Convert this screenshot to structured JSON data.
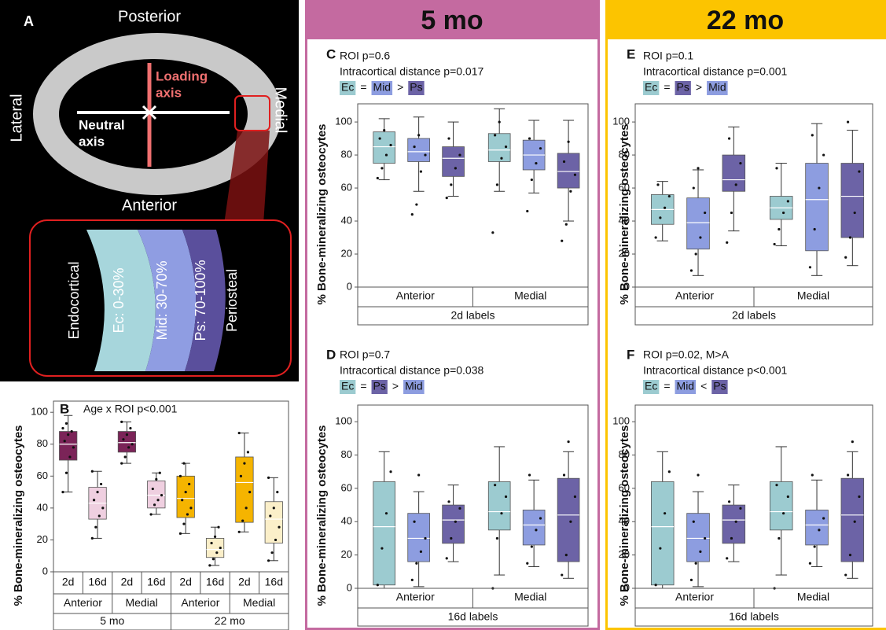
{
  "panel_a": {
    "letter": "A",
    "posterior": "Posterior",
    "anterior": "Anterior",
    "lateral": "Lateral",
    "medial": "Medial",
    "loading_axis": [
      "Loading",
      "axis"
    ],
    "neutral_axis": [
      "Neutral",
      "axis"
    ],
    "inset": {
      "endocortical": "Endocortical",
      "ec": "Ec: 0-30%",
      "mid": "Mid: 30-70%",
      "ps": "Ps: 70-100%",
      "periosteal": "Periosteal"
    }
  },
  "headers": [
    "5 mo",
    "22 mo"
  ],
  "chart_data": [
    {
      "type": "box",
      "panel": "B",
      "annotation": "Age x ROI p<0.001",
      "ylabel": "% Bone-mineralizing osteocytes",
      "ylim": [
        0,
        107
      ],
      "yticks": [
        0,
        20,
        40,
        60,
        80,
        100
      ],
      "categories": [
        "2d",
        "16d",
        "2d",
        "16d",
        "2d",
        "16d",
        "2d",
        "16d"
      ],
      "groups": [
        "Anterior",
        "Medial",
        "Anterior",
        "Medial"
      ],
      "supergroups": [
        "5 mo",
        "22 mo"
      ],
      "colors": [
        "#7b2458",
        "#efcfe0",
        "#7b2458",
        "#efcfe0",
        "#f5b400",
        "#fbefc9",
        "#f5b400",
        "#fbefc9"
      ],
      "values": [
        [
          50,
          70,
          80,
          88,
          98
        ],
        [
          21,
          33,
          43,
          53,
          63
        ],
        [
          68,
          75,
          81,
          88,
          94
        ],
        [
          36,
          40,
          48,
          57,
          62
        ],
        [
          24,
          34,
          46,
          60,
          68
        ],
        [
          4,
          9,
          14,
          21,
          28
        ],
        [
          25,
          31,
          56,
          72,
          87
        ],
        [
          7,
          18,
          33,
          44,
          59
        ]
      ],
      "points": [
        [
          50,
          62,
          72,
          78,
          82,
          86,
          88,
          90,
          93
        ],
        [
          21,
          28,
          35,
          40,
          45,
          50,
          55,
          63
        ],
        [
          68,
          72,
          78,
          80,
          83,
          86,
          90,
          94
        ],
        [
          36,
          42,
          45,
          48,
          52,
          58,
          62
        ],
        [
          24,
          30,
          36,
          40,
          45,
          50,
          55,
          60,
          68
        ],
        [
          4,
          8,
          12,
          15,
          18,
          22,
          28
        ],
        [
          25,
          32,
          40,
          50,
          60,
          68,
          75,
          87
        ],
        [
          7,
          12,
          20,
          28,
          35,
          40,
          50,
          59
        ]
      ]
    },
    {
      "type": "box",
      "panel": "C",
      "annotations": [
        "ROI p=0.6",
        "Intracortical distance p=0.017"
      ],
      "comparison": [
        "Ec",
        "=",
        "Mid",
        ">",
        "Ps"
      ],
      "ylabel": "% Bone-mineralizing osteocytes",
      "xlabel": "2d labels",
      "ylim": [
        0,
        111
      ],
      "yticks": [
        0,
        20,
        40,
        60,
        80,
        100
      ],
      "categories": [
        "Anterior",
        "Medial"
      ],
      "series": [
        {
          "name": "Ec",
          "color": "#9ccbd0",
          "values": [
            [
              65,
              75,
              85,
              94,
              102
            ],
            [
              58,
              76,
              83,
              93,
              108
            ]
          ],
          "points": [
            [
              66,
              72,
              80,
              86,
              90,
              95
            ],
            [
              33,
              62,
              78,
              85,
              92,
              100
            ]
          ]
        },
        {
          "name": "Mid",
          "color": "#8d9de0",
          "values": [
            [
              58,
              76,
              82,
              90,
              103
            ],
            [
              57,
              71,
              80,
              89,
              101
            ]
          ],
          "points": [
            [
              44,
              50,
              70,
              80,
              85,
              92
            ],
            [
              46,
              65,
              75,
              84,
              90
            ]
          ]
        },
        {
          "name": "Ps",
          "color": "#6c63a6",
          "values": [
            [
              55,
              67,
              78,
              85,
              100
            ],
            [
              40,
              60,
              70,
              81,
              101
            ]
          ],
          "points": [
            [
              54,
              62,
              72,
              80,
              90
            ],
            [
              28,
              38,
              58,
              68,
              76,
              88
            ]
          ]
        }
      ]
    },
    {
      "type": "box",
      "panel": "D",
      "annotations": [
        "ROI p=0.7",
        "Intracortical distance p=0.038"
      ],
      "comparison": [
        "Ec",
        "=",
        "Ps",
        ">",
        "Mid"
      ],
      "ylabel": "% Bone-mineralizing osteocytes",
      "xlabel": "16d labels",
      "ylim": [
        0,
        110
      ],
      "yticks": [
        0,
        20,
        40,
        60,
        80,
        100
      ],
      "categories": [
        "Anterior",
        "Medial"
      ],
      "series": [
        {
          "name": "Ec",
          "color": "#9ccbd0",
          "values": [
            [
              0,
              2,
              37,
              64,
              82
            ],
            [
              8,
              35,
              46,
              64,
              85
            ]
          ],
          "points": [
            [
              2,
              24,
              45,
              70
            ],
            [
              0,
              30,
              45,
              55,
              62
            ]
          ]
        },
        {
          "name": "Mid",
          "color": "#8d9de0",
          "values": [
            [
              1,
              16,
              30,
              45,
              58
            ],
            [
              13,
              26,
              38,
              47,
              65
            ]
          ],
          "points": [
            [
              5,
              15,
              22,
              30,
              40,
              68
            ],
            [
              15,
              25,
              35,
              42,
              68
            ]
          ]
        },
        {
          "name": "Ps",
          "color": "#6c63a6",
          "values": [
            [
              16,
              27,
              41,
              50,
              62
            ],
            [
              6,
              16,
              44,
              66,
              82
            ]
          ],
          "points": [
            [
              18,
              30,
              40,
              48,
              52
            ],
            [
              8,
              20,
              40,
              55,
              68,
              88
            ]
          ]
        }
      ]
    },
    {
      "type": "box",
      "panel": "E",
      "annotations": [
        "ROI p=0.1",
        "Intracortical distance p=0.001"
      ],
      "comparison": [
        "Ec",
        "=",
        "Ps",
        ">",
        "Mid"
      ],
      "ylabel": "% Bone-mineralizing osteocytes",
      "xlabel": "2d labels",
      "ylim": [
        0,
        111
      ],
      "yticks": [
        0,
        20,
        40,
        60,
        80,
        100
      ],
      "categories": [
        "Anterior",
        "Medial"
      ],
      "series": [
        {
          "name": "Ec",
          "color": "#9ccbd0",
          "values": [
            [
              28,
              38,
              47,
              56,
              64
            ],
            [
              25,
              41,
              48,
              55,
              75
            ]
          ],
          "points": [
            [
              30,
              42,
              48,
              55,
              62
            ],
            [
              26,
              35,
              45,
              52,
              72
            ]
          ]
        },
        {
          "name": "Mid",
          "color": "#8d9de0",
          "values": [
            [
              7,
              23,
              39,
              54,
              71
            ],
            [
              7,
              22,
              53,
              75,
              99
            ]
          ],
          "points": [
            [
              10,
              20,
              30,
              45,
              60,
              72
            ],
            [
              12,
              35,
              60,
              80,
              92
            ]
          ]
        },
        {
          "name": "Ps",
          "color": "#6c63a6",
          "values": [
            [
              34,
              58,
              65,
              80,
              97
            ],
            [
              13,
              30,
              55,
              75,
              95
            ]
          ],
          "points": [
            [
              27,
              45,
              62,
              75,
              90
            ],
            [
              18,
              30,
              45,
              70,
              100
            ]
          ]
        }
      ]
    },
    {
      "type": "box",
      "panel": "F",
      "annotations": [
        "ROI p=0.02, M>A",
        "Intracortical distance p<0.001"
      ],
      "comparison": [
        "Ec",
        "=",
        "Mid",
        "<",
        "Ps"
      ],
      "ylabel": "% Bone-mineralizing osteocytes",
      "xlabel": "16d labels",
      "ylim": [
        0,
        110
      ],
      "yticks": [
        0,
        20,
        40,
        60,
        80,
        100
      ],
      "categories": [
        "Anterior",
        "Medial"
      ],
      "series": [
        {
          "name": "Ec",
          "color": "#9ccbd0",
          "values": [
            [
              0,
              2,
              37,
              64,
              82
            ],
            [
              8,
              35,
              46,
              64,
              85
            ]
          ],
          "points": [
            [
              2,
              24,
              45,
              70
            ],
            [
              0,
              30,
              45,
              55,
              62
            ]
          ]
        },
        {
          "name": "Mid",
          "color": "#8d9de0",
          "values": [
            [
              1,
              16,
              30,
              45,
              58
            ],
            [
              13,
              26,
              38,
              47,
              65
            ]
          ],
          "points": [
            [
              5,
              15,
              22,
              30,
              40,
              68
            ],
            [
              15,
              25,
              35,
              42,
              68
            ]
          ]
        },
        {
          "name": "Ps",
          "color": "#6c63a6",
          "values": [
            [
              16,
              27,
              41,
              50,
              62
            ],
            [
              6,
              16,
              44,
              66,
              82
            ]
          ],
          "points": [
            [
              18,
              30,
              40,
              48,
              52
            ],
            [
              8,
              20,
              40,
              55,
              68,
              88
            ]
          ]
        }
      ]
    }
  ]
}
